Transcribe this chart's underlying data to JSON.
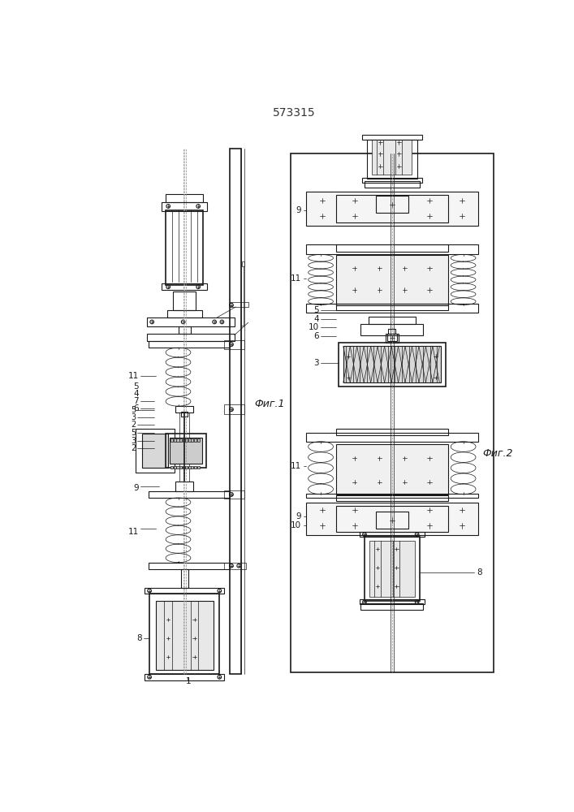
{
  "title": "573315",
  "bg_color": "#ffffff",
  "line_color": "#1a1a1a",
  "fig1_label": "Фиг.1",
  "fig2_label": "Фиг.2"
}
